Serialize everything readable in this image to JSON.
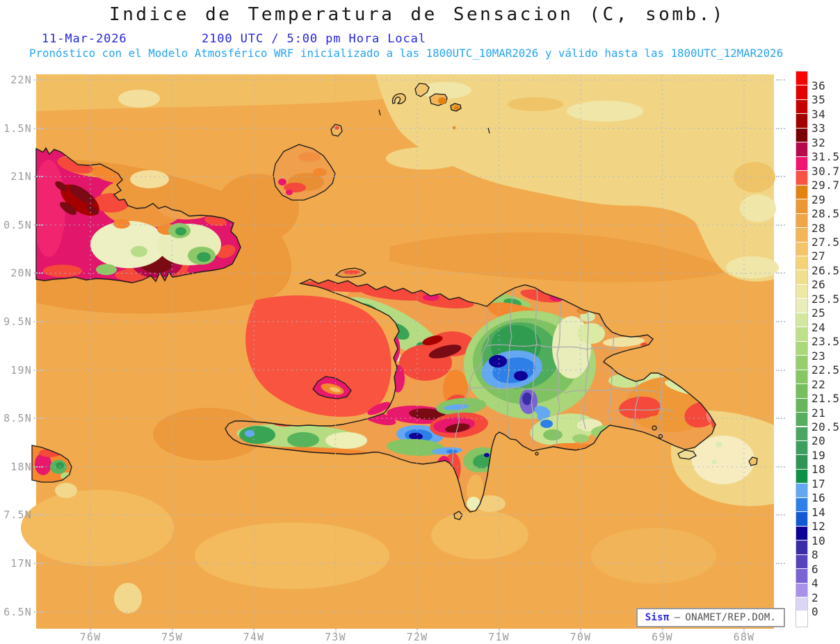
{
  "header": {
    "title": "Indice de Temperatura de Sensacion (C, somb.)",
    "date": "11-Mar-2026",
    "time": "2100 UTC / 5:00 pm Hora Local",
    "forecast": "Pronóstico con el Modelo Atmosférico WRF inicializado a las 1800UTC_10MAR2026 y válido hasta las  1800UTC_12MAR2026"
  },
  "map": {
    "lat_labels": [
      "22N",
      "1.5N",
      "21N",
      "0.5N",
      "20N",
      "9.5N",
      "19N",
      "8.5N",
      "18N",
      "7.5N",
      "17N",
      "6.5N"
    ],
    "lon_labels": [
      "76W",
      "75W",
      "74W",
      "73W",
      "72W",
      "71W",
      "70W",
      "69W",
      "68W"
    ]
  },
  "colorbar": {
    "tick_labels": [
      "36",
      "35",
      "34",
      "33",
      "32",
      "31.5",
      "30.7",
      "29.7",
      "29",
      "28.5",
      "28",
      "27.5",
      "27",
      "26.5",
      "26",
      "25.5",
      "25",
      "24",
      "23.5",
      "23",
      "22.5",
      "22",
      "21.5",
      "21",
      "20.5",
      "20",
      "19",
      "18",
      "17",
      "16",
      "14",
      "12",
      "10",
      "8",
      "6",
      "4",
      "2",
      "0"
    ],
    "cell_colors": [
      "#FB0202",
      "#E30000",
      "#C70000",
      "#A30000",
      "#7A0005",
      "#B5094C",
      "#F31371",
      "#FA5244",
      "#E2830F",
      "#EC9735",
      "#EFA647",
      "#F2B558",
      "#F4C468",
      "#F4D276",
      "#F0DF8C",
      "#EEE8A5",
      "#E9EDB9",
      "#D3E89E",
      "#BFE08A",
      "#ABD879",
      "#97CE6C",
      "#86C663",
      "#76BE5E",
      "#67B65C",
      "#58AE5E",
      "#4BA663",
      "#3E9E60",
      "#2F9455",
      "#0E9048",
      "#64A8F2",
      "#2E7FE8",
      "#1459D4",
      "#0D0096",
      "#3B2CA8",
      "#5743BC",
      "#7A63D2",
      "#A891E8",
      "#DCD6F5",
      "#FFFFFF"
    ]
  },
  "attribution": {
    "brand": "Sisπ",
    "separator": "–",
    "text": "ONAMET/REP.DOM."
  },
  "colors": {
    "title": "#161616",
    "date_line": "#2424DF",
    "forecast_line": "#25A4F0",
    "axis_label": "#9C9C9C",
    "attribution_brand": "#2A2AE0",
    "attribution_text": "#4F4F4F",
    "ocean_base": "#F1AB4E"
  }
}
